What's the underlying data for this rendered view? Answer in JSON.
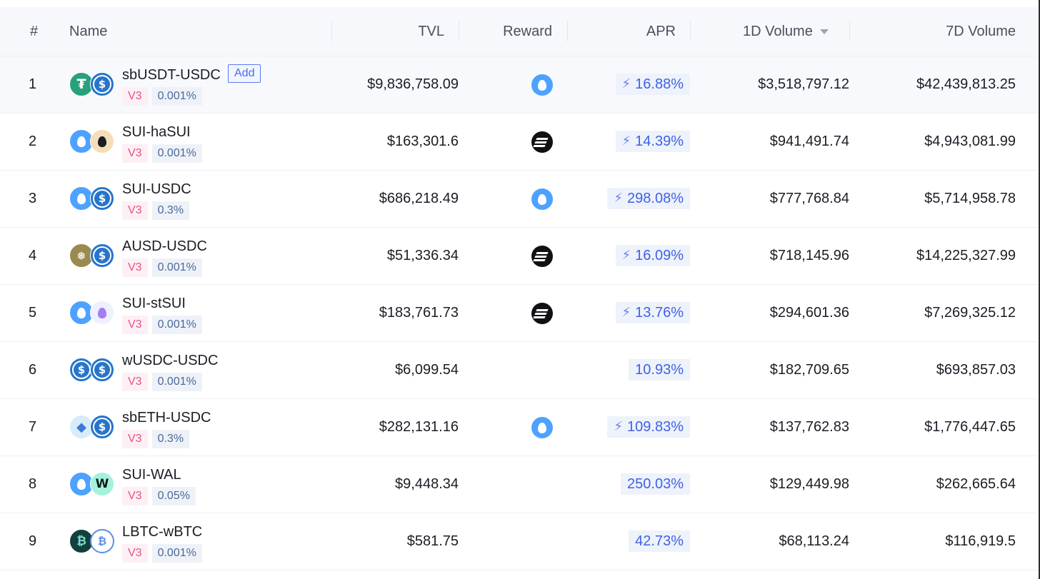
{
  "columns": {
    "rank": "#",
    "name": "Name",
    "tvl": "TVL",
    "reward": "Reward",
    "apr": "APR",
    "vol1d": "1D Volume",
    "vol7d": "7D Volume"
  },
  "add_label": "Add",
  "rows": [
    {
      "rank": "1",
      "pair": "sbUSDT-USDC",
      "version": "V3",
      "fee": "0.001%",
      "tvl": "$9,836,758.09",
      "reward": "sui-icon",
      "apr": "16.88%",
      "boost": true,
      "vol1d": "$3,518,797.12",
      "vol7d": "$42,439,813.25",
      "coins": [
        "usdt",
        "usdc"
      ]
    },
    {
      "rank": "2",
      "pair": "SUI-haSUI",
      "version": "V3",
      "fee": "0.001%",
      "tvl": "$163,301.6",
      "reward": "stripes-icon",
      "apr": "14.39%",
      "boost": true,
      "vol1d": "$941,491.74",
      "vol7d": "$4,943,081.99",
      "coins": [
        "sui",
        "hasui"
      ]
    },
    {
      "rank": "3",
      "pair": "SUI-USDC",
      "version": "V3",
      "fee": "0.3%",
      "tvl": "$686,218.49",
      "reward": "sui-icon",
      "apr": "298.08%",
      "boost": true,
      "vol1d": "$777,768.84",
      "vol7d": "$5,714,958.78",
      "coins": [
        "sui",
        "usdc"
      ]
    },
    {
      "rank": "4",
      "pair": "AUSD-USDC",
      "version": "V3",
      "fee": "0.001%",
      "tvl": "$51,336.34",
      "reward": "stripes-icon",
      "apr": "16.09%",
      "boost": true,
      "vol1d": "$718,145.96",
      "vol7d": "$14,225,327.99",
      "coins": [
        "ausd",
        "usdc"
      ]
    },
    {
      "rank": "5",
      "pair": "SUI-stSUI",
      "version": "V3",
      "fee": "0.001%",
      "tvl": "$183,761.73",
      "reward": "stripes-icon",
      "apr": "13.76%",
      "boost": true,
      "vol1d": "$294,601.36",
      "vol7d": "$7,269,325.12",
      "coins": [
        "sui",
        "stsui"
      ]
    },
    {
      "rank": "6",
      "pair": "wUSDC-USDC",
      "version": "V3",
      "fee": "0.001%",
      "tvl": "$6,099.54",
      "reward": "",
      "apr": "10.93%",
      "boost": false,
      "vol1d": "$182,709.65",
      "vol7d": "$693,857.03",
      "coins": [
        "usdc",
        "usdc"
      ]
    },
    {
      "rank": "7",
      "pair": "sbETH-USDC",
      "version": "V3",
      "fee": "0.3%",
      "tvl": "$282,131.16",
      "reward": "sui-icon",
      "apr": "109.83%",
      "boost": true,
      "vol1d": "$137,762.83",
      "vol7d": "$1,776,447.65",
      "coins": [
        "eth",
        "usdc"
      ]
    },
    {
      "rank": "8",
      "pair": "SUI-WAL",
      "version": "V3",
      "fee": "0.05%",
      "tvl": "$9,448.34",
      "reward": "",
      "apr": "250.03%",
      "boost": false,
      "vol1d": "$129,449.98",
      "vol7d": "$262,665.64",
      "coins": [
        "sui",
        "wal"
      ]
    },
    {
      "rank": "9",
      "pair": "LBTC-wBTC",
      "version": "V3",
      "fee": "0.001%",
      "tvl": "$581.75",
      "reward": "",
      "apr": "42.73%",
      "boost": false,
      "vol1d": "$68,113.24",
      "vol7d": "$116,919.5",
      "coins": [
        "lbtc",
        "wbtc"
      ]
    }
  ],
  "colors": {
    "accent": "#3e62e6",
    "version_tag": "#e8508b",
    "fee_tag": "#4a6a98"
  }
}
